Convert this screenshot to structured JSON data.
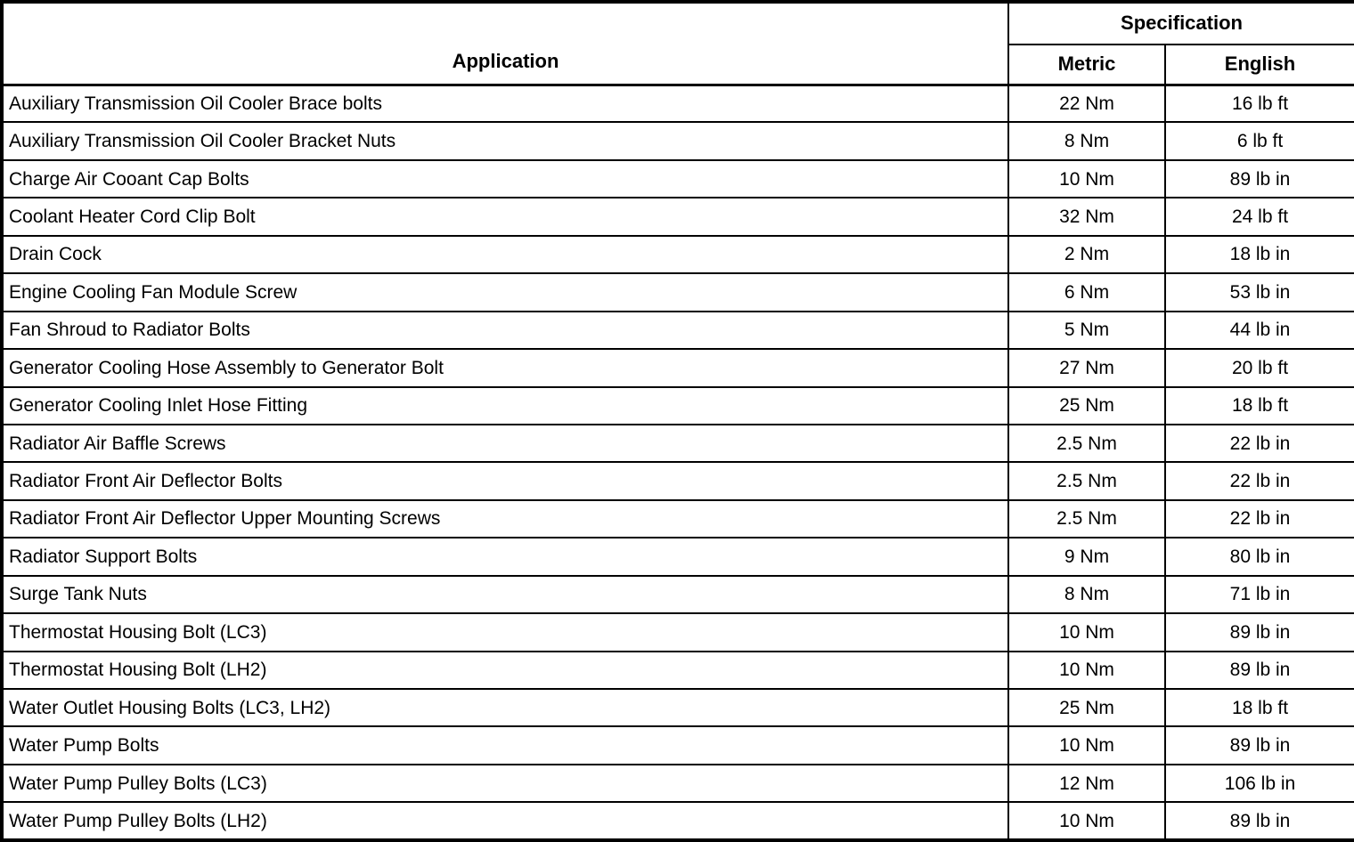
{
  "table": {
    "headers": {
      "application": "Application",
      "specification": "Specification",
      "metric": "Metric",
      "english": "English"
    },
    "rows": [
      {
        "application": "Auxiliary Transmission Oil Cooler Brace bolts",
        "metric": "22 Nm",
        "english": "16 lb ft"
      },
      {
        "application": "Auxiliary Transmission Oil Cooler Bracket Nuts",
        "metric": "8 Nm",
        "english": "6 lb ft"
      },
      {
        "application": "Charge Air Cooant Cap Bolts",
        "metric": "10 Nm",
        "english": "89 lb in"
      },
      {
        "application": "Coolant Heater Cord Clip Bolt",
        "metric": "32 Nm",
        "english": "24 lb ft"
      },
      {
        "application": "Drain Cock",
        "metric": "2 Nm",
        "english": "18 lb in"
      },
      {
        "application": "Engine Cooling Fan Module Screw",
        "metric": "6 Nm",
        "english": "53 lb in"
      },
      {
        "application": "Fan Shroud to Radiator Bolts",
        "metric": "5 Nm",
        "english": "44 lb in"
      },
      {
        "application": "Generator Cooling Hose Assembly to Generator Bolt",
        "metric": "27 Nm",
        "english": "20 lb ft"
      },
      {
        "application": "Generator Cooling Inlet Hose Fitting",
        "metric": "25 Nm",
        "english": "18 lb ft"
      },
      {
        "application": "Radiator Air Baffle Screws",
        "metric": "2.5 Nm",
        "english": "22 lb in"
      },
      {
        "application": "Radiator Front Air Deflector Bolts",
        "metric": "2.5 Nm",
        "english": "22 lb in"
      },
      {
        "application": "Radiator Front Air Deflector Upper Mounting Screws",
        "metric": "2.5 Nm",
        "english": "22 lb in"
      },
      {
        "application": "Radiator Support Bolts",
        "metric": "9 Nm",
        "english": "80 lb in"
      },
      {
        "application": "Surge Tank Nuts",
        "metric": "8 Nm",
        "english": "71 lb in"
      },
      {
        "application": "Thermostat Housing Bolt (LC3)",
        "metric": "10 Nm",
        "english": "89 lb in"
      },
      {
        "application": "Thermostat Housing Bolt (LH2)",
        "metric": "10 Nm",
        "english": "89 lb in"
      },
      {
        "application": "Water Outlet Housing Bolts (LC3, LH2)",
        "metric": "25 Nm",
        "english": "18 lb ft"
      },
      {
        "application": "Water Pump Bolts",
        "metric": "10 Nm",
        "english": "89 lb in"
      },
      {
        "application": "Water Pump Pulley Bolts (LC3)",
        "metric": "12 Nm",
        "english": "106 lb in"
      },
      {
        "application": "Water Pump Pulley Bolts (LH2)",
        "metric": "10 Nm",
        "english": "89 lb in"
      }
    ]
  },
  "colors": {
    "border": "#000000",
    "background": "#ffffff",
    "text": "#000000"
  }
}
